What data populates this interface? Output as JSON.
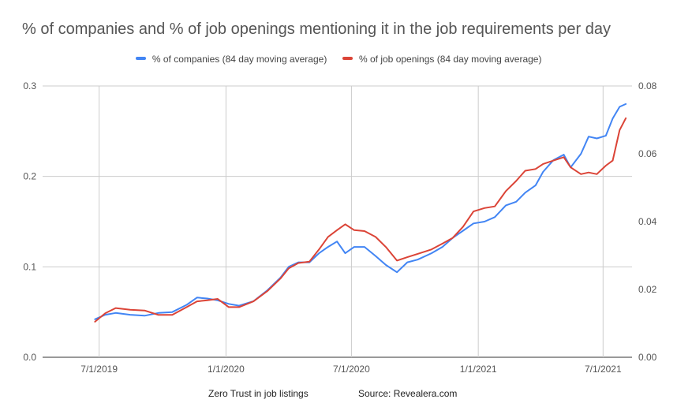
{
  "chart_data": {
    "type": "line",
    "title": "% of companies and % of job openings mentioning it in the job requirements per day",
    "legend_position": "top",
    "grid": {
      "horizontal": true,
      "vertical": true
    },
    "x_axis": {
      "type": "date",
      "ticks": [
        "2019-07-01",
        "2020-01-01",
        "2020-07-01",
        "2021-01-01",
        "2021-07-01"
      ],
      "tick_labels": [
        "7/1/2019",
        "1/1/2020",
        "7/1/2020",
        "1/1/2021",
        "7/1/2021"
      ],
      "range": [
        "2019-04-10",
        "2021-08-12"
      ]
    },
    "y_left": {
      "range": [
        0,
        0.3
      ],
      "ticks": [
        0,
        0.1,
        0.2,
        0.3
      ],
      "tick_labels": [
        "0.0",
        "0.1",
        "0.2",
        "0.3"
      ]
    },
    "y_right": {
      "range": [
        0,
        0.08
      ],
      "ticks": [
        0,
        0.02,
        0.04,
        0.06,
        0.08
      ],
      "tick_labels": [
        "0.00",
        "0.02",
        "0.04",
        "0.06",
        "0.08"
      ]
    },
    "series": [
      {
        "name": "% of companies (84 day moving average)",
        "color": "#4285f4",
        "axis": "left",
        "points": [
          [
            "2019-06-25",
            0.042
          ],
          [
            "2019-07-10",
            0.047
          ],
          [
            "2019-07-25",
            0.049
          ],
          [
            "2019-08-15",
            0.047
          ],
          [
            "2019-09-05",
            0.046
          ],
          [
            "2019-09-25",
            0.049
          ],
          [
            "2019-10-15",
            0.05
          ],
          [
            "2019-11-05",
            0.058
          ],
          [
            "2019-11-20",
            0.066
          ],
          [
            "2019-12-05",
            0.065
          ],
          [
            "2019-12-20",
            0.063
          ],
          [
            "2020-01-05",
            0.059
          ],
          [
            "2020-01-20",
            0.057
          ],
          [
            "2020-02-10",
            0.062
          ],
          [
            "2020-03-01",
            0.074
          ],
          [
            "2020-03-20",
            0.088
          ],
          [
            "2020-04-01",
            0.1
          ],
          [
            "2020-04-15",
            0.105
          ],
          [
            "2020-05-01",
            0.105
          ],
          [
            "2020-05-15",
            0.115
          ],
          [
            "2020-05-28",
            0.122
          ],
          [
            "2020-06-10",
            0.128
          ],
          [
            "2020-06-22",
            0.115
          ],
          [
            "2020-07-05",
            0.122
          ],
          [
            "2020-07-20",
            0.122
          ],
          [
            "2020-08-05",
            0.112
          ],
          [
            "2020-08-20",
            0.102
          ],
          [
            "2020-09-05",
            0.094
          ],
          [
            "2020-09-20",
            0.105
          ],
          [
            "2020-10-05",
            0.108
          ],
          [
            "2020-10-25",
            0.115
          ],
          [
            "2020-11-10",
            0.122
          ],
          [
            "2020-11-25",
            0.132
          ],
          [
            "2020-12-10",
            0.14
          ],
          [
            "2020-12-25",
            0.148
          ],
          [
            "2021-01-10",
            0.15
          ],
          [
            "2021-01-25",
            0.155
          ],
          [
            "2021-02-10",
            0.168
          ],
          [
            "2021-02-25",
            0.172
          ],
          [
            "2021-03-10",
            0.182
          ],
          [
            "2021-03-25",
            0.19
          ],
          [
            "2021-04-05",
            0.205
          ],
          [
            "2021-04-20",
            0.218
          ],
          [
            "2021-05-05",
            0.224
          ],
          [
            "2021-05-15",
            0.21
          ],
          [
            "2021-05-30",
            0.225
          ],
          [
            "2021-06-10",
            0.244
          ],
          [
            "2021-06-22",
            0.242
          ],
          [
            "2021-07-05",
            0.245
          ],
          [
            "2021-07-15",
            0.264
          ],
          [
            "2021-07-25",
            0.277
          ],
          [
            "2021-08-03",
            0.28
          ]
        ]
      },
      {
        "name": "% of job openings (84 day moving average)",
        "color": "#db4437",
        "axis": "right",
        "points": [
          [
            "2019-06-25",
            0.0105
          ],
          [
            "2019-07-10",
            0.013
          ],
          [
            "2019-07-25",
            0.0145
          ],
          [
            "2019-08-15",
            0.014
          ],
          [
            "2019-09-05",
            0.0138
          ],
          [
            "2019-09-25",
            0.0125
          ],
          [
            "2019-10-15",
            0.0125
          ],
          [
            "2019-11-05",
            0.0148
          ],
          [
            "2019-11-20",
            0.0165
          ],
          [
            "2019-12-05",
            0.0168
          ],
          [
            "2019-12-20",
            0.0172
          ],
          [
            "2020-01-05",
            0.0148
          ],
          [
            "2020-01-20",
            0.0148
          ],
          [
            "2020-02-10",
            0.0165
          ],
          [
            "2020-03-01",
            0.0195
          ],
          [
            "2020-03-20",
            0.0232
          ],
          [
            "2020-04-01",
            0.0262
          ],
          [
            "2020-04-15",
            0.0278
          ],
          [
            "2020-05-01",
            0.0282
          ],
          [
            "2020-05-15",
            0.0318
          ],
          [
            "2020-05-28",
            0.0355
          ],
          [
            "2020-06-10",
            0.0375
          ],
          [
            "2020-06-22",
            0.0392
          ],
          [
            "2020-07-05",
            0.0375
          ],
          [
            "2020-07-20",
            0.0372
          ],
          [
            "2020-08-05",
            0.0355
          ],
          [
            "2020-08-20",
            0.0325
          ],
          [
            "2020-09-05",
            0.0285
          ],
          [
            "2020-09-20",
            0.0295
          ],
          [
            "2020-10-05",
            0.0305
          ],
          [
            "2020-10-25",
            0.0318
          ],
          [
            "2020-11-10",
            0.0335
          ],
          [
            "2020-11-25",
            0.0352
          ],
          [
            "2020-12-10",
            0.0385
          ],
          [
            "2020-12-25",
            0.043
          ],
          [
            "2021-01-10",
            0.044
          ],
          [
            "2021-01-25",
            0.0445
          ],
          [
            "2021-02-10",
            0.049
          ],
          [
            "2021-02-25",
            0.052
          ],
          [
            "2021-03-10",
            0.055
          ],
          [
            "2021-03-25",
            0.0555
          ],
          [
            "2021-04-05",
            0.057
          ],
          [
            "2021-04-20",
            0.058
          ],
          [
            "2021-05-05",
            0.059
          ],
          [
            "2021-05-15",
            0.056
          ],
          [
            "2021-05-30",
            0.054
          ],
          [
            "2021-06-10",
            0.0545
          ],
          [
            "2021-06-22",
            0.054
          ],
          [
            "2021-07-05",
            0.0565
          ],
          [
            "2021-07-15",
            0.058
          ],
          [
            "2021-07-25",
            0.067
          ],
          [
            "2021-08-03",
            0.0705
          ]
        ]
      }
    ]
  },
  "footer": {
    "left_text": "Zero Trust in job listings",
    "right_text": "Source: Revealera.com"
  }
}
